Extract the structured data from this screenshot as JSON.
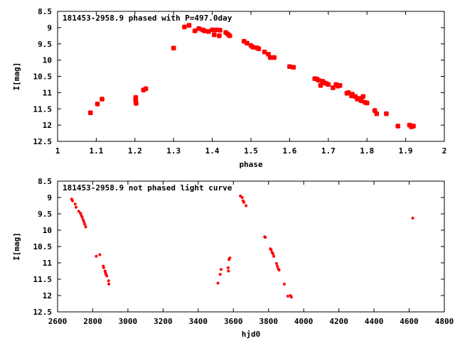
{
  "chart_data": [
    {
      "type": "scatter",
      "title": "181453-2958.9 phased with P=497.0day",
      "xlabel": "phase",
      "ylabel": "I[mag]",
      "xlim": [
        1,
        2
      ],
      "ylim": [
        12.5,
        8.5
      ],
      "y_inverted": true,
      "xticks": [
        "1",
        "1.1",
        "1.2",
        "1.3",
        "1.4",
        "1.5",
        "1.6",
        "1.7",
        "1.8",
        "1.9",
        "2"
      ],
      "yticks": [
        "8.5",
        "9",
        "9.5",
        "10",
        "10.5",
        "11",
        "11.5",
        "12",
        "12.5"
      ],
      "grid": false,
      "marker_color": "#ff0000",
      "series": [
        {
          "x": [
            1.085,
            1.103,
            1.115,
            1.202,
            1.202,
            1.203,
            1.222,
            1.228,
            1.3,
            1.328,
            1.34,
            1.355,
            1.365,
            1.375,
            1.38,
            1.39,
            1.4,
            1.405,
            1.41,
            1.418,
            1.42,
            1.435,
            1.44,
            1.445,
            1.482,
            1.49,
            1.5,
            1.505,
            1.515,
            1.52,
            1.535,
            1.545,
            1.55,
            1.56,
            1.6,
            1.61,
            1.665,
            1.67,
            1.675,
            1.68,
            1.685,
            1.69,
            1.695,
            1.7,
            1.712,
            1.72,
            1.725,
            1.73,
            1.748,
            1.752,
            1.76,
            1.762,
            1.77,
            1.775,
            1.78,
            1.785,
            1.79,
            1.795,
            1.8,
            1.82,
            1.825,
            1.85,
            1.88,
            1.91,
            1.915,
            1.92
          ],
          "y": [
            11.62,
            11.35,
            11.2,
            11.15,
            11.25,
            11.33,
            10.92,
            10.88,
            9.63,
            8.98,
            8.93,
            9.1,
            9.03,
            9.07,
            9.1,
            9.12,
            9.07,
            9.22,
            9.07,
            9.25,
            9.08,
            9.15,
            9.2,
            9.25,
            9.42,
            9.48,
            9.55,
            9.6,
            9.62,
            9.65,
            9.75,
            9.82,
            9.92,
            9.92,
            10.2,
            10.22,
            10.57,
            10.58,
            10.62,
            10.78,
            10.65,
            10.7,
            10.72,
            10.75,
            10.85,
            10.75,
            10.8,
            10.78,
            11.02,
            11.0,
            11.1,
            11.05,
            11.12,
            11.2,
            11.18,
            11.25,
            11.12,
            11.3,
            11.32,
            11.55,
            11.65,
            11.65,
            12.03,
            12.0,
            12.05,
            12.03
          ]
        }
      ]
    },
    {
      "type": "scatter",
      "title": "181453-2958.9 not phased light curve",
      "xlabel": "hjd0",
      "ylabel": "I[mag]",
      "xlim": [
        2600,
        4800
      ],
      "ylim": [
        12.5,
        8.5
      ],
      "y_inverted": true,
      "xticks": [
        "2600",
        "2800",
        "3000",
        "3200",
        "3400",
        "3600",
        "3800",
        "4000",
        "4200",
        "4400",
        "4600",
        "4800"
      ],
      "yticks": [
        "8.5",
        "9",
        "9.5",
        "10",
        "10.5",
        "11",
        "11.5",
        "12",
        "12.5"
      ],
      "grid": false,
      "marker_color": "#ff0000",
      "series": [
        {
          "x": [
            2680,
            2685,
            2700,
            2705,
            2720,
            2730,
            2735,
            2740,
            2745,
            2750,
            2755,
            2760,
            2820,
            2840,
            2860,
            2862,
            2870,
            2872,
            2875,
            2880,
            2890,
            2892,
            3512,
            3525,
            3530,
            3570,
            3572,
            3575,
            3580,
            3640,
            3650,
            3655,
            3660,
            3672,
            3778,
            3782,
            3810,
            3815,
            3820,
            3825,
            3830,
            3845,
            3850,
            3855,
            3860,
            3890,
            3910,
            3925,
            3930,
            4620
          ],
          "y": [
            9.05,
            9.1,
            9.2,
            9.3,
            9.42,
            9.48,
            9.55,
            9.6,
            9.68,
            9.75,
            9.82,
            9.9,
            10.8,
            10.75,
            11.1,
            11.15,
            11.25,
            11.3,
            11.35,
            11.4,
            11.55,
            11.65,
            11.62,
            11.35,
            11.2,
            11.15,
            11.25,
            10.9,
            10.85,
            8.95,
            9.0,
            9.1,
            9.15,
            9.25,
            10.2,
            10.22,
            10.57,
            10.6,
            10.68,
            10.72,
            10.8,
            11.02,
            11.1,
            11.18,
            11.22,
            11.65,
            12.02,
            12.0,
            12.05,
            9.63
          ]
        }
      ]
    }
  ]
}
